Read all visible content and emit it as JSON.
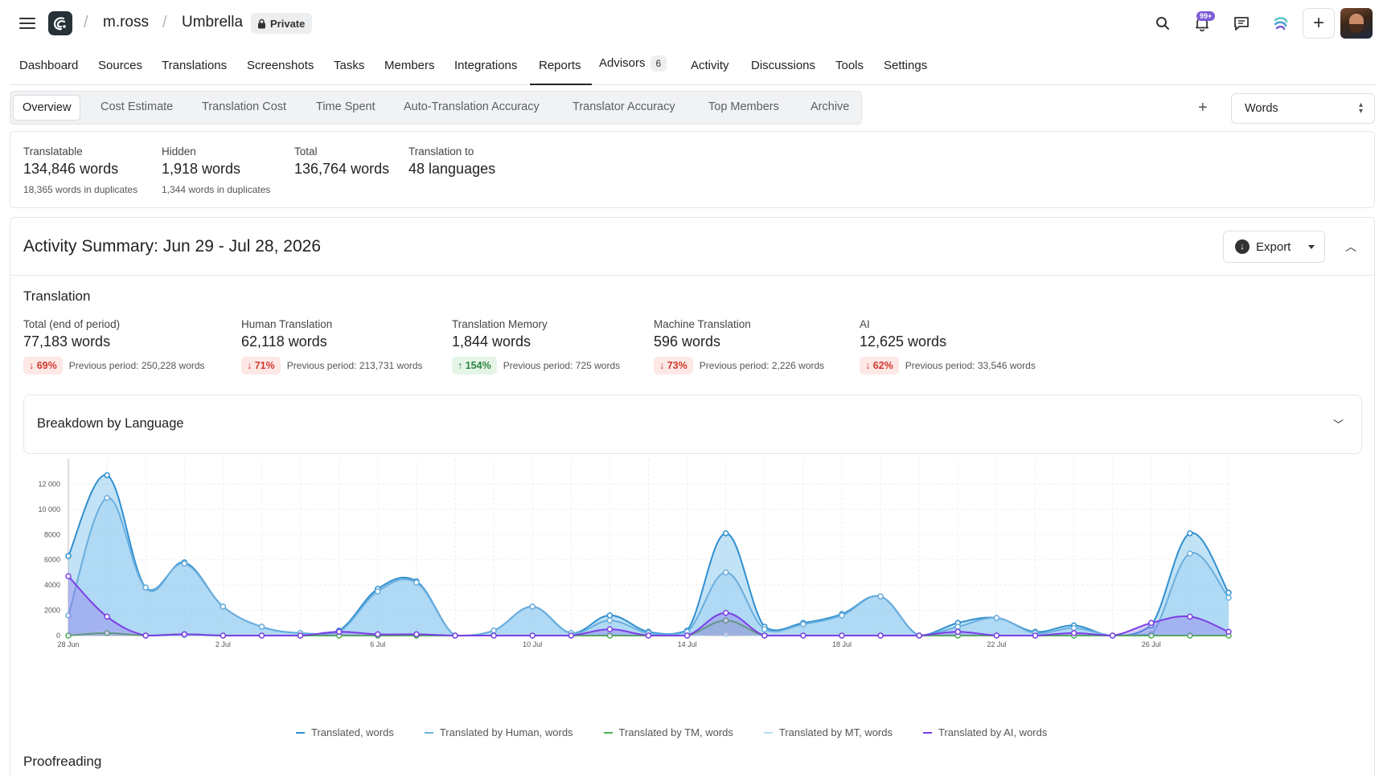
{
  "header": {
    "owner": "m.ross",
    "project": "Umbrella",
    "visibility": "Private",
    "notifications_badge": "99+"
  },
  "nav": {
    "items": [
      "Dashboard",
      "Sources",
      "Translations",
      "Screenshots",
      "Tasks",
      "Members",
      "Integrations",
      "Reports",
      "Advisors",
      "Activity",
      "Discussions",
      "Tools",
      "Settings"
    ],
    "active": "Reports",
    "advisors_count": "6"
  },
  "subtabs": {
    "items": [
      "Overview",
      "Cost Estimate",
      "Translation Cost",
      "Time Spent",
      "Auto-Translation Accuracy",
      "Translator Accuracy",
      "Top Members",
      "Archive"
    ],
    "active": "Overview"
  },
  "unit_select": {
    "value": "Words"
  },
  "stats": [
    {
      "label": "Translatable",
      "value": "134,846 words",
      "sub": "18,365 words in duplicates"
    },
    {
      "label": "Hidden",
      "value": "1,918 words",
      "sub": "1,344 words in duplicates"
    },
    {
      "label": "Total",
      "value": "136,764 words",
      "sub": ""
    },
    {
      "label": "Translation to",
      "value": "48 languages",
      "sub": ""
    }
  ],
  "activity": {
    "title": "Activity Summary: Jun 29 - Jul 28, 2026",
    "export_label": "Export",
    "translation_section": "Translation",
    "breakdown_label": "Breakdown by Language",
    "proofreading_section": "Proofreading",
    "metrics": [
      {
        "label": "Total (end of period)",
        "value": "77,183 words",
        "pct": "69%",
        "dir": "down",
        "prev": "Previous period: 250,228 words"
      },
      {
        "label": "Human Translation",
        "value": "62,118 words",
        "pct": "71%",
        "dir": "down",
        "prev": "Previous period: 213,731 words"
      },
      {
        "label": "Translation Memory",
        "value": "1,844 words",
        "pct": "154%",
        "dir": "up",
        "prev": "Previous period: 725 words"
      },
      {
        "label": "Machine Translation",
        "value": "596 words",
        "pct": "73%",
        "dir": "down",
        "prev": "Previous period: 2,226 words"
      },
      {
        "label": "AI",
        "value": "12,625 words",
        "pct": "62%",
        "dir": "down",
        "prev": "Previous period: 33,546 words"
      }
    ]
  },
  "chart_data": {
    "type": "area",
    "x": [
      "28 Jun",
      "29 Jun",
      "30 Jun",
      "1 Jul",
      "2 Jul",
      "3 Jul",
      "4 Jul",
      "5 Jul",
      "6 Jul",
      "7 Jul",
      "8 Jul",
      "9 Jul",
      "10 Jul",
      "11 Jul",
      "12 Jul",
      "13 Jul",
      "14 Jul",
      "15 Jul",
      "16 Jul",
      "17 Jul",
      "18 Jul",
      "19 Jul",
      "20 Jul",
      "21 Jul",
      "22 Jul",
      "23 Jul",
      "24 Jul",
      "25 Jul",
      "26 Jul",
      "27 Jul",
      "28 Jul"
    ],
    "x_tick_labels": [
      "28 Jun",
      "2 Jul",
      "6 Jul",
      "10 Jul",
      "14 Jul",
      "18 Jul",
      "22 Jul",
      "26 Jul"
    ],
    "y_ticks": [
      0,
      2000,
      4000,
      6000,
      8000,
      10000,
      12000
    ],
    "y_tick_labels": [
      "0",
      "2000",
      "4000",
      "6000",
      "8000",
      "10 000",
      "12 000"
    ],
    "ylim": [
      0,
      14000
    ],
    "grid": true,
    "legend_position": "bottom",
    "series": [
      {
        "name": "Translated, words",
        "color": "#2f8fd0",
        "values": [
          6300,
          12700,
          3800,
          5800,
          2300,
          700,
          200,
          400,
          3700,
          4300,
          0,
          400,
          2300,
          200,
          1600,
          300,
          400,
          8100,
          700,
          1000,
          1700,
          3100,
          0,
          1000,
          1400,
          300,
          800,
          0,
          800,
          8100,
          3400
        ]
      },
      {
        "name": "Translated by Human, words",
        "color": "#6aaede",
        "values": [
          1600,
          10900,
          3800,
          5700,
          2300,
          700,
          200,
          300,
          3500,
          4200,
          0,
          400,
          2300,
          200,
          1200,
          200,
          300,
          5000,
          500,
          900,
          1600,
          3100,
          0,
          700,
          1400,
          200,
          600,
          0,
          100,
          6500,
          3000
        ]
      },
      {
        "name": "Translated by TM, words",
        "color": "#4caf50",
        "values": [
          0,
          200,
          0,
          100,
          0,
          0,
          0,
          0,
          0,
          0,
          0,
          0,
          0,
          0,
          0,
          0,
          0,
          1200,
          0,
          0,
          0,
          0,
          0,
          0,
          0,
          0,
          0,
          0,
          0,
          0,
          0
        ]
      },
      {
        "name": "Translated by MT, words",
        "color": "#b6dff2",
        "values": [
          0,
          300,
          0,
          0,
          0,
          0,
          0,
          0,
          0,
          0,
          0,
          0,
          0,
          0,
          0,
          0,
          0,
          100,
          0,
          0,
          0,
          0,
          0,
          0,
          0,
          0,
          0,
          0,
          0,
          0,
          0
        ]
      },
      {
        "name": "Translated by AI, words",
        "color": "#7b3fe4",
        "values": [
          4700,
          1500,
          0,
          100,
          0,
          0,
          0,
          300,
          100,
          100,
          0,
          0,
          0,
          0,
          500,
          0,
          0,
          1800,
          0,
          0,
          0,
          0,
          0,
          300,
          0,
          0,
          200,
          0,
          1000,
          1500,
          300
        ]
      }
    ]
  }
}
